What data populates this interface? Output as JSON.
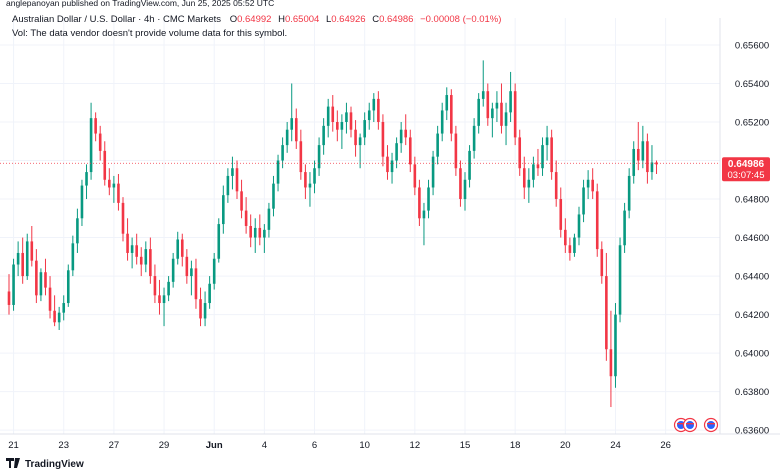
{
  "publisher_line": "anglepanoyan published on TradingView.com, Jun 25, 2025 05:52 UTC",
  "header": {
    "symbol": "Australian Dollar / U.S. Dollar · 4h · CMC Markets",
    "ohlc": [
      {
        "label": "O",
        "value": "0.64992"
      },
      {
        "label": "H",
        "value": "0.65004"
      },
      {
        "label": "L",
        "value": "0.64926"
      },
      {
        "label": "C",
        "value": "0.64986"
      }
    ],
    "change": "−0.00008 (−0.01%)",
    "vol_note": "Vol: The data vendor doesn't provide volume data for this symbol."
  },
  "price_tag": {
    "price": "0.64986",
    "countdown": "03:07:45",
    "value": 0.64986
  },
  "brand": "TradingView",
  "colors": {
    "up": "#089981",
    "down": "#f23645",
    "tag": "#f23645",
    "grid": "#f0f3fa",
    "text": "#131722"
  },
  "chart_data": {
    "type": "candlestick",
    "title": "Australian Dollar / U.S. Dollar · 4h · CMC Markets",
    "ylim": [
      0.6358,
      0.6574
    ],
    "y_ticks": [
      0.636,
      0.638,
      0.64,
      0.642,
      0.644,
      0.646,
      0.648,
      0.65,
      0.652,
      0.654,
      0.656
    ],
    "y_tick_labels": [
      "0.63600",
      "0.63800",
      "0.64000",
      "0.64200",
      "0.64400",
      "0.64600",
      "0.64800",
      "0.65000",
      "0.65200",
      "0.65400",
      "0.65600"
    ],
    "x_ticks": [
      {
        "index": 1,
        "label": "21"
      },
      {
        "index": 12,
        "label": "23"
      },
      {
        "index": 23,
        "label": "27"
      },
      {
        "index": 34,
        "label": "29"
      },
      {
        "index": 45,
        "label": "Jun"
      },
      {
        "index": 56,
        "label": "4"
      },
      {
        "index": 67,
        "label": "6"
      },
      {
        "index": 78,
        "label": "10"
      },
      {
        "index": 89,
        "label": "12"
      },
      {
        "index": 100,
        "label": "15"
      },
      {
        "index": 111,
        "label": "18"
      },
      {
        "index": 122,
        "label": "20"
      },
      {
        "index": 133,
        "label": "24"
      },
      {
        "index": 144,
        "label": "26"
      }
    ],
    "candles": [
      [
        0.6432,
        0.6441,
        0.642,
        0.6425
      ],
      [
        0.6425,
        0.6449,
        0.6422,
        0.6446
      ],
      [
        0.6446,
        0.6458,
        0.644,
        0.6452
      ],
      [
        0.6452,
        0.646,
        0.6436,
        0.644
      ],
      [
        0.644,
        0.6462,
        0.6438,
        0.6458
      ],
      [
        0.6458,
        0.6466,
        0.6445,
        0.6448
      ],
      [
        0.6448,
        0.6454,
        0.6426,
        0.643
      ],
      [
        0.643,
        0.6444,
        0.6427,
        0.6442
      ],
      [
        0.6442,
        0.6449,
        0.643,
        0.6434
      ],
      [
        0.6434,
        0.644,
        0.6418,
        0.6422
      ],
      [
        0.6422,
        0.643,
        0.6414,
        0.6416
      ],
      [
        0.6416,
        0.6424,
        0.6412,
        0.6421
      ],
      [
        0.6421,
        0.643,
        0.6417,
        0.6426
      ],
      [
        0.6426,
        0.6446,
        0.6424,
        0.6443
      ],
      [
        0.6443,
        0.6461,
        0.644,
        0.6457
      ],
      [
        0.6457,
        0.6475,
        0.6452,
        0.647
      ],
      [
        0.647,
        0.649,
        0.6466,
        0.6487
      ],
      [
        0.6487,
        0.6498,
        0.648,
        0.6494
      ],
      [
        0.6494,
        0.653,
        0.649,
        0.6522
      ],
      [
        0.6522,
        0.6525,
        0.651,
        0.6514
      ],
      [
        0.6514,
        0.6518,
        0.65,
        0.6505
      ],
      [
        0.6505,
        0.651,
        0.6487,
        0.649
      ],
      [
        0.649,
        0.6496,
        0.6482,
        0.6486
      ],
      [
        0.6486,
        0.6492,
        0.6478,
        0.6488
      ],
      [
        0.6488,
        0.6493,
        0.6474,
        0.6478
      ],
      [
        0.6478,
        0.6481,
        0.6458,
        0.6462
      ],
      [
        0.6462,
        0.647,
        0.6448,
        0.6452
      ],
      [
        0.6452,
        0.646,
        0.6444,
        0.6456
      ],
      [
        0.6456,
        0.6462,
        0.6446,
        0.645
      ],
      [
        0.645,
        0.6455,
        0.644,
        0.6446
      ],
      [
        0.6446,
        0.6458,
        0.6442,
        0.6454
      ],
      [
        0.6454,
        0.646,
        0.6436,
        0.644
      ],
      [
        0.644,
        0.6446,
        0.6426,
        0.643
      ],
      [
        0.643,
        0.6438,
        0.642,
        0.6426
      ],
      [
        0.6426,
        0.6434,
        0.6414,
        0.643
      ],
      [
        0.643,
        0.644,
        0.6427,
        0.6437
      ],
      [
        0.6437,
        0.6452,
        0.6434,
        0.6449
      ],
      [
        0.6449,
        0.6463,
        0.6446,
        0.6459
      ],
      [
        0.6459,
        0.6462,
        0.6445,
        0.645
      ],
      [
        0.645,
        0.6454,
        0.6436,
        0.644
      ],
      [
        0.644,
        0.6448,
        0.643,
        0.6444
      ],
      [
        0.6444,
        0.6449,
        0.6423,
        0.6428
      ],
      [
        0.6428,
        0.6434,
        0.6414,
        0.6418
      ],
      [
        0.6418,
        0.6432,
        0.6414,
        0.6426
      ],
      [
        0.6426,
        0.644,
        0.6423,
        0.6436
      ],
      [
        0.6436,
        0.6452,
        0.6433,
        0.6449
      ],
      [
        0.6449,
        0.647,
        0.6447,
        0.6467
      ],
      [
        0.6467,
        0.6487,
        0.6462,
        0.6482
      ],
      [
        0.6482,
        0.6496,
        0.6478,
        0.6492
      ],
      [
        0.6492,
        0.6502,
        0.6485,
        0.6496
      ],
      [
        0.6496,
        0.65,
        0.648,
        0.6484
      ],
      [
        0.6484,
        0.649,
        0.647,
        0.6474
      ],
      [
        0.6474,
        0.6481,
        0.6462,
        0.6466
      ],
      [
        0.6466,
        0.6472,
        0.6455,
        0.646
      ],
      [
        0.646,
        0.647,
        0.6452,
        0.6465
      ],
      [
        0.6465,
        0.6472,
        0.6456,
        0.646
      ],
      [
        0.646,
        0.6467,
        0.6452,
        0.6464
      ],
      [
        0.6464,
        0.6478,
        0.646,
        0.6475
      ],
      [
        0.6475,
        0.6492,
        0.6471,
        0.6488
      ],
      [
        0.6488,
        0.6503,
        0.6484,
        0.65
      ],
      [
        0.65,
        0.6512,
        0.6496,
        0.6508
      ],
      [
        0.6508,
        0.652,
        0.6504,
        0.6516
      ],
      [
        0.6516,
        0.654,
        0.651,
        0.6522
      ],
      [
        0.6522,
        0.6527,
        0.6506,
        0.651
      ],
      [
        0.651,
        0.6516,
        0.649,
        0.6494
      ],
      [
        0.6494,
        0.6498,
        0.648,
        0.6486
      ],
      [
        0.6486,
        0.6494,
        0.6476,
        0.6488
      ],
      [
        0.6488,
        0.65,
        0.6483,
        0.6496
      ],
      [
        0.6496,
        0.6512,
        0.6492,
        0.6508
      ],
      [
        0.6508,
        0.6522,
        0.6503,
        0.6518
      ],
      [
        0.6518,
        0.6532,
        0.6512,
        0.6528
      ],
      [
        0.6528,
        0.6534,
        0.6515,
        0.652
      ],
      [
        0.652,
        0.6526,
        0.651,
        0.6516
      ],
      [
        0.6516,
        0.6524,
        0.6506,
        0.652
      ],
      [
        0.652,
        0.653,
        0.6514,
        0.6525
      ],
      [
        0.6525,
        0.6528,
        0.6512,
        0.6516
      ],
      [
        0.6516,
        0.6521,
        0.6502,
        0.6508
      ],
      [
        0.6508,
        0.6514,
        0.6496,
        0.6512
      ],
      [
        0.6512,
        0.6525,
        0.6508,
        0.6521
      ],
      [
        0.6521,
        0.653,
        0.6516,
        0.6526
      ],
      [
        0.6526,
        0.6535,
        0.652,
        0.6532
      ],
      [
        0.6532,
        0.6536,
        0.6516,
        0.652
      ],
      [
        0.652,
        0.6524,
        0.6497,
        0.6502
      ],
      [
        0.6502,
        0.6508,
        0.649,
        0.6494
      ],
      [
        0.6494,
        0.6504,
        0.6488,
        0.65
      ],
      [
        0.65,
        0.6512,
        0.6496,
        0.6509
      ],
      [
        0.6509,
        0.652,
        0.6504,
        0.6516
      ],
      [
        0.6516,
        0.6524,
        0.6508,
        0.6512
      ],
      [
        0.6512,
        0.6516,
        0.6494,
        0.6498
      ],
      [
        0.6498,
        0.6502,
        0.6482,
        0.6486
      ],
      [
        0.6486,
        0.649,
        0.6466,
        0.647
      ],
      [
        0.647,
        0.6478,
        0.6456,
        0.6474
      ],
      [
        0.6474,
        0.649,
        0.647,
        0.6486
      ],
      [
        0.6486,
        0.6505,
        0.6482,
        0.6502
      ],
      [
        0.6502,
        0.6518,
        0.6498,
        0.6514
      ],
      [
        0.6514,
        0.653,
        0.651,
        0.6526
      ],
      [
        0.6526,
        0.6538,
        0.6521,
        0.6534
      ],
      [
        0.6534,
        0.6537,
        0.651,
        0.6514
      ],
      [
        0.6514,
        0.6518,
        0.6492,
        0.6496
      ],
      [
        0.6496,
        0.65,
        0.6476,
        0.648
      ],
      [
        0.648,
        0.6494,
        0.6474,
        0.649
      ],
      [
        0.649,
        0.6508,
        0.6486,
        0.6505
      ],
      [
        0.6505,
        0.6522,
        0.6501,
        0.6518
      ],
      [
        0.6518,
        0.6535,
        0.6514,
        0.6532
      ],
      [
        0.6532,
        0.6552,
        0.6528,
        0.6536
      ],
      [
        0.6536,
        0.654,
        0.6518,
        0.6522
      ],
      [
        0.6522,
        0.653,
        0.6512,
        0.6527
      ],
      [
        0.6527,
        0.6536,
        0.652,
        0.653
      ],
      [
        0.653,
        0.654,
        0.6514,
        0.6518
      ],
      [
        0.6518,
        0.653,
        0.6508,
        0.6525
      ],
      [
        0.6525,
        0.6546,
        0.652,
        0.6536
      ],
      [
        0.6536,
        0.654,
        0.6508,
        0.6512
      ],
      [
        0.6512,
        0.6516,
        0.6492,
        0.6496
      ],
      [
        0.6496,
        0.6502,
        0.648,
        0.6486
      ],
      [
        0.6486,
        0.6496,
        0.6478,
        0.649
      ],
      [
        0.649,
        0.6502,
        0.6486,
        0.6498
      ],
      [
        0.6498,
        0.6506,
        0.6492,
        0.6496
      ],
      [
        0.6496,
        0.6512,
        0.6492,
        0.6508
      ],
      [
        0.6508,
        0.6518,
        0.65,
        0.6512
      ],
      [
        0.6512,
        0.6516,
        0.649,
        0.6494
      ],
      [
        0.6494,
        0.65,
        0.6476,
        0.648
      ],
      [
        0.648,
        0.6486,
        0.646,
        0.6464
      ],
      [
        0.6464,
        0.647,
        0.6452,
        0.6456
      ],
      [
        0.6456,
        0.646,
        0.6448,
        0.6452
      ],
      [
        0.6452,
        0.6462,
        0.645,
        0.646
      ],
      [
        0.646,
        0.6476,
        0.6456,
        0.6472
      ],
      [
        0.6472,
        0.649,
        0.6468,
        0.6486
      ],
      [
        0.6486,
        0.6495,
        0.648,
        0.649
      ],
      [
        0.649,
        0.6496,
        0.648,
        0.6484
      ],
      [
        0.6484,
        0.6488,
        0.645,
        0.6454
      ],
      [
        0.6454,
        0.6458,
        0.6436,
        0.644
      ],
      [
        0.644,
        0.6452,
        0.6396,
        0.6402
      ],
      [
        0.6402,
        0.6422,
        0.6372,
        0.6388
      ],
      [
        0.6388,
        0.6426,
        0.6382,
        0.642
      ],
      [
        0.642,
        0.646,
        0.6416,
        0.6456
      ],
      [
        0.6456,
        0.6478,
        0.6452,
        0.6474
      ],
      [
        0.6474,
        0.6496,
        0.647,
        0.6492
      ],
      [
        0.6492,
        0.651,
        0.6488,
        0.6506
      ],
      [
        0.6506,
        0.652,
        0.6495,
        0.65
      ],
      [
        0.65,
        0.6518,
        0.6496,
        0.651
      ],
      [
        0.651,
        0.6514,
        0.6488,
        0.6494
      ],
      [
        0.6494,
        0.6508,
        0.649,
        0.6499
      ],
      [
        0.6499,
        0.65,
        0.6493,
        0.6498
      ]
    ],
    "current_price": 0.64986
  }
}
